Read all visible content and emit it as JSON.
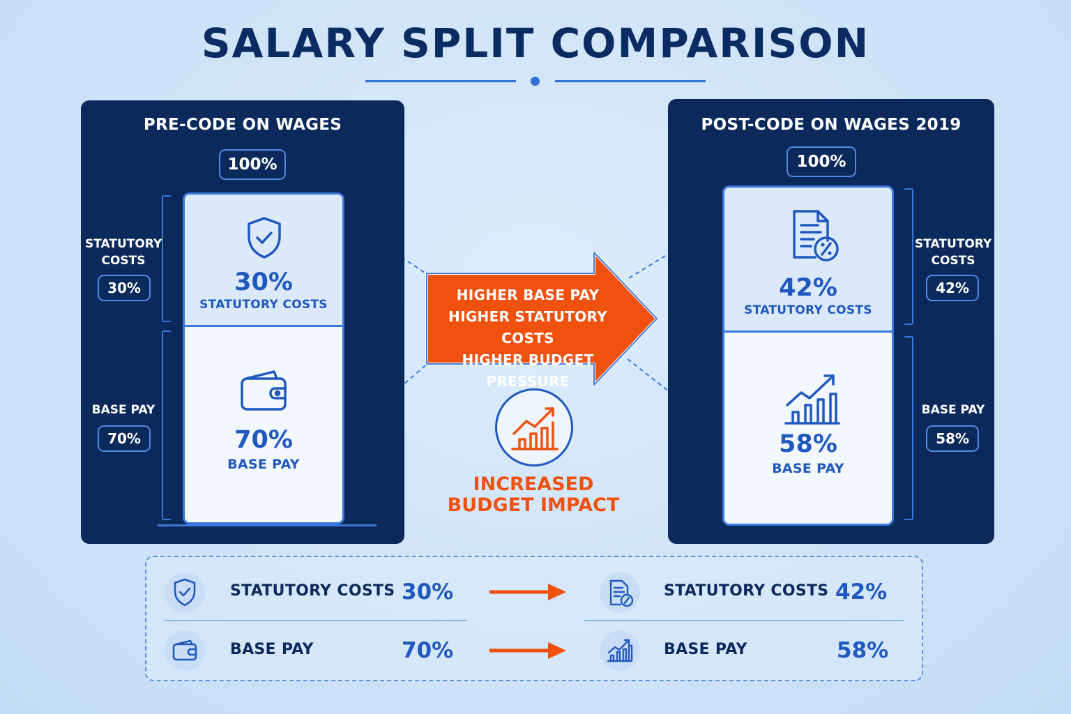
{
  "title": "SALARY SPLIT COMPARISON",
  "colors": {
    "navy": "#0b2a5b",
    "accent_blue": "#3a78de",
    "text_blue": "#1f59bf",
    "orange": "#f0510f",
    "background": "#cfe3f8"
  },
  "left_panel": {
    "title": "PRE-CODE ON WAGES",
    "total": "100%",
    "statutory": {
      "side_label_line1": "STATUTORY",
      "side_label_line2": "COSTS",
      "side_value": "30%",
      "percent": "30%",
      "label": "STATUTORY COSTS",
      "icon": "shield-check-icon"
    },
    "base": {
      "side_label": "BASE PAY",
      "side_value": "70%",
      "percent": "70%",
      "label": "BASE PAY",
      "icon": "wallet-icon"
    },
    "statutory_share": 0.3,
    "base_share": 0.7
  },
  "right_panel": {
    "title": "POST-CODE ON WAGES 2019",
    "total": "100%",
    "statutory": {
      "side_label_line1": "STATUTORY",
      "side_label_line2": "COSTS",
      "side_value": "42%",
      "percent": "42%",
      "label": "STATUTORY COSTS",
      "icon": "document-percent-icon"
    },
    "base": {
      "side_label": "BASE PAY",
      "side_value": "58%",
      "percent": "58%",
      "label": "BASE PAY",
      "icon": "growth-chart-icon"
    },
    "statutory_share": 0.42,
    "base_share": 0.58
  },
  "arrow": {
    "lines": [
      "HIGHER BASE PAY",
      "HIGHER STATUTORY COSTS",
      "HIGHER BUDGET PRESSURE"
    ]
  },
  "impact": {
    "line1": "INCREASED",
    "line2": "BUDGET IMPACT",
    "icon": "growth-chart-icon"
  },
  "summary": {
    "rows": [
      {
        "before_label": "STATUTORY COSTS",
        "before_value": "30%",
        "after_label": "STATUTORY COSTS",
        "after_value": "42%",
        "before_icon": "shield-check-icon",
        "after_icon": "document-percent-icon"
      },
      {
        "before_label": "BASE PAY",
        "before_value": "70%",
        "after_label": "BASE PAY",
        "after_value": "58%",
        "before_icon": "wallet-icon",
        "after_icon": "growth-chart-icon"
      }
    ]
  }
}
